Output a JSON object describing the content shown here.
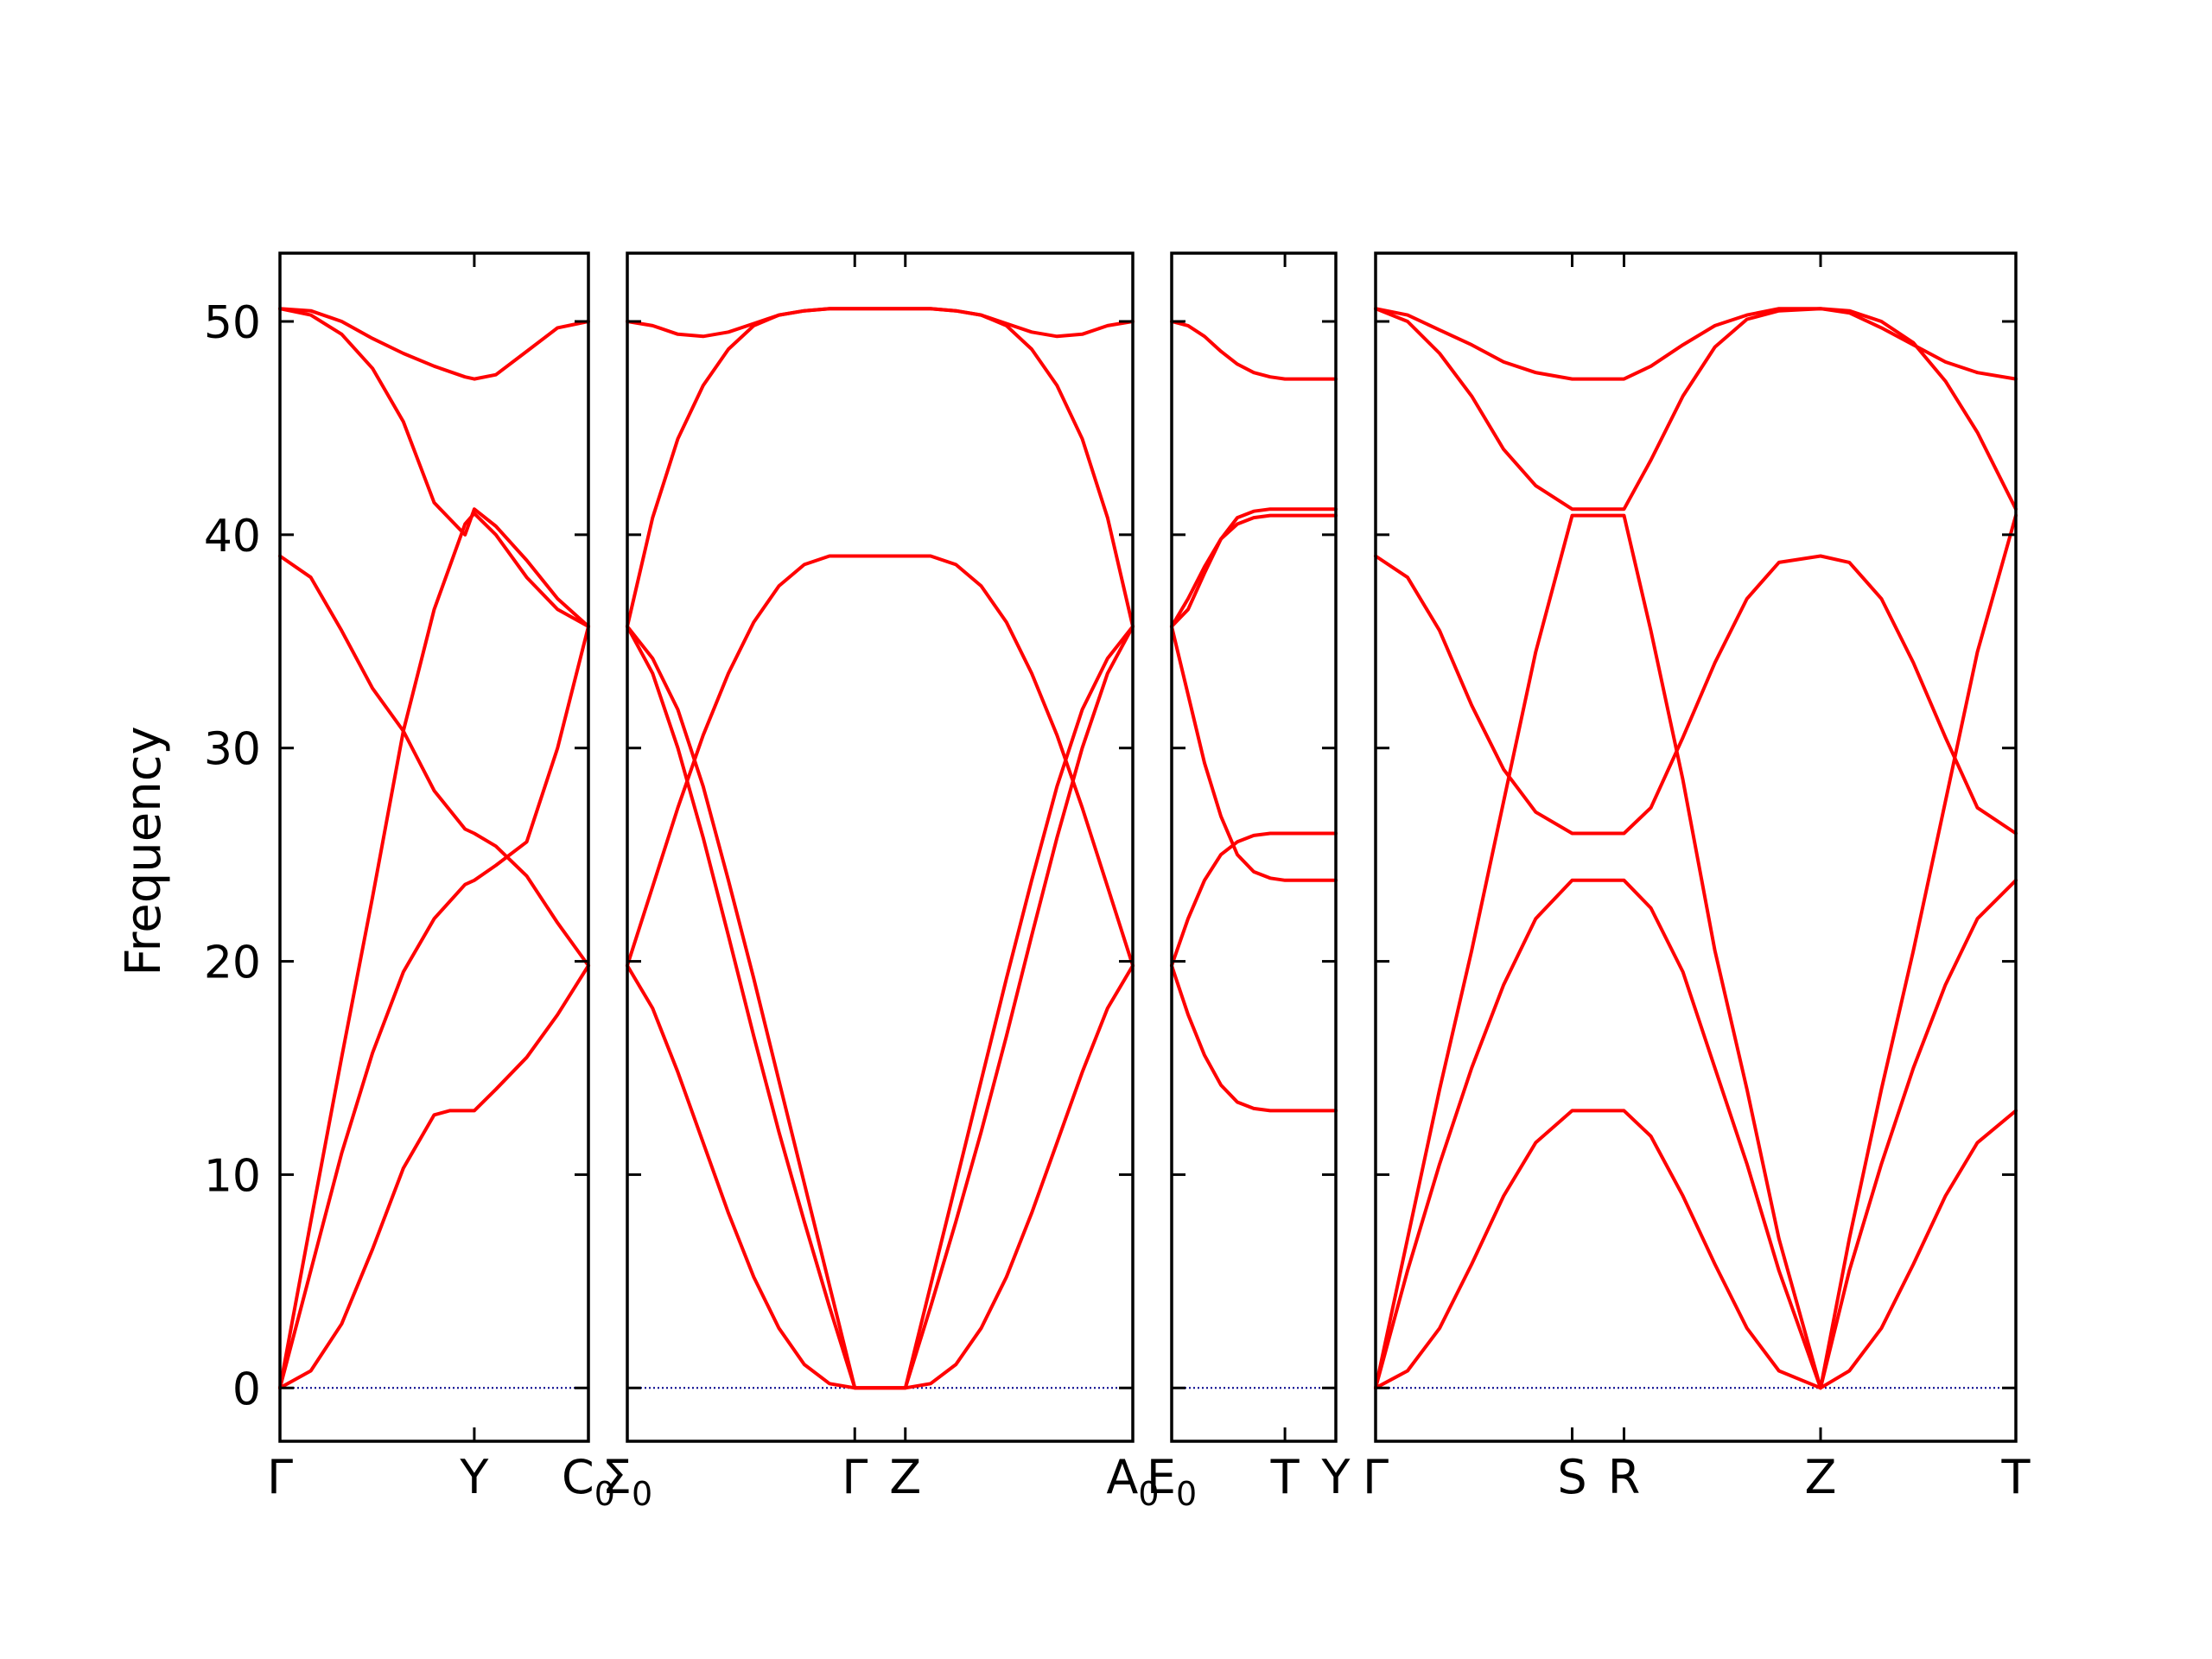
{
  "chart_data": {
    "type": "line",
    "ylabel": "Frequency",
    "ylim": [
      -2.5,
      53.2
    ],
    "yticks": [
      0,
      10,
      20,
      30,
      40,
      50
    ],
    "colors": {
      "band": "#ff0000",
      "zero_line": "#00008b",
      "frame": "#000000"
    },
    "panels": [
      {
        "xlim": [
          0,
          1
        ],
        "ticks": [
          {
            "pos": 0,
            "label": "Γ"
          },
          {
            "pos": 0.63,
            "label": "Y"
          },
          {
            "pos": 1,
            "label": "C",
            "sub": "0"
          }
        ],
        "series": [
          {
            "x": [
              0,
              0.1,
              0.2,
              0.3,
              0.4,
              0.5,
              0.55,
              0.63,
              0.7,
              0.8,
              0.9,
              1.0
            ],
            "y": [
              0,
              0.8,
              3.0,
              6.5,
              10.3,
              12.8,
              13.0,
              13.0,
              14.0,
              15.5,
              17.5,
              19.8
            ]
          },
          {
            "x": [
              0,
              0.1,
              0.2,
              0.3,
              0.4,
              0.5,
              0.6,
              0.63,
              0.7,
              0.8,
              0.9,
              1.0
            ],
            "y": [
              0,
              5.5,
              11.0,
              15.7,
              19.5,
              22.0,
              23.6,
              23.8,
              24.5,
              25.6,
              30.0,
              35.7
            ]
          },
          {
            "x": [
              0,
              0.1,
              0.2,
              0.3,
              0.4,
              0.5,
              0.6,
              0.63,
              0.7,
              0.8,
              0.9,
              1.0
            ],
            "y": [
              0,
              7.8,
              15.5,
              23.0,
              30.8,
              36.5,
              40.5,
              41.0,
              40.0,
              38.0,
              36.5,
              35.7
            ]
          },
          {
            "x": [
              0,
              0.1,
              0.2,
              0.3,
              0.4,
              0.5,
              0.6,
              0.63,
              0.7,
              0.8,
              0.9,
              1.0
            ],
            "y": [
              39.0,
              38.0,
              35.5,
              32.8,
              30.8,
              28.0,
              26.2,
              26.0,
              25.4,
              24.0,
              21.8,
              19.8
            ]
          },
          {
            "x": [
              0,
              0.1,
              0.2,
              0.3,
              0.4,
              0.5,
              0.6,
              0.63,
              0.7,
              0.8,
              0.9,
              1.0
            ],
            "y": [
              50.6,
              50.3,
              49.4,
              47.8,
              45.3,
              41.5,
              40.0,
              41.2,
              40.4,
              38.8,
              37.0,
              35.7
            ]
          },
          {
            "x": [
              0,
              0.1,
              0.2,
              0.3,
              0.4,
              0.5,
              0.6,
              0.63,
              0.7,
              0.8,
              0.9,
              1.0
            ],
            "y": [
              50.6,
              50.5,
              50.0,
              49.2,
              48.5,
              47.9,
              47.4,
              47.3,
              47.5,
              48.6,
              49.7,
              50.0
            ]
          }
        ],
        "zero_line": true
      },
      {
        "xlim": [
          0,
          1
        ],
        "ticks": [
          {
            "pos": 0,
            "label": "Σ",
            "sub": "0"
          },
          {
            "pos": 0.45,
            "label": "Γ"
          },
          {
            "pos": 0.55,
            "label": "Z"
          },
          {
            "pos": 1,
            "label": "A",
            "sub": "0"
          }
        ],
        "series": [
          {
            "x": [
              0,
              0.05,
              0.1,
              0.15,
              0.2,
              0.25,
              0.3,
              0.35,
              0.4,
              0.45,
              0.55,
              0.6,
              0.65,
              0.7,
              0.75,
              0.8,
              0.85,
              0.9,
              0.95,
              1.0
            ],
            "y": [
              19.8,
              17.8,
              14.8,
              11.5,
              8.2,
              5.2,
              2.8,
              1.1,
              0.2,
              0,
              0,
              0.2,
              1.1,
              2.8,
              5.2,
              8.2,
              11.5,
              14.8,
              17.8,
              19.8
            ]
          },
          {
            "x": [
              0,
              0.05,
              0.1,
              0.15,
              0.2,
              0.25,
              0.3,
              0.35,
              0.4,
              0.45,
              0.55,
              0.6,
              0.65,
              0.7,
              0.75,
              0.8,
              0.85,
              0.9,
              0.95,
              1.0
            ],
            "y": [
              19.8,
              23.5,
              27.2,
              30.6,
              33.5,
              35.9,
              37.6,
              38.6,
              39.0,
              39.0,
              39.0,
              39.0,
              38.6,
              37.6,
              35.9,
              33.5,
              30.6,
              27.2,
              23.5,
              19.8
            ]
          },
          {
            "x": [
              0,
              0.05,
              0.1,
              0.15,
              0.2,
              0.25,
              0.3,
              0.35,
              0.4,
              0.45,
              0.55,
              0.6,
              0.65,
              0.7,
              0.75,
              0.8,
              0.85,
              0.9,
              0.95,
              1.0
            ],
            "y": [
              35.7,
              40.8,
              44.5,
              47.0,
              48.7,
              49.8,
              50.3,
              50.5,
              50.6,
              50.6,
              50.6,
              50.6,
              50.5,
              50.3,
              49.8,
              48.7,
              47.0,
              44.5,
              40.8,
              35.7
            ]
          },
          {
            "x": [
              0,
              0.05,
              0.1,
              0.15,
              0.2,
              0.25,
              0.3,
              0.35,
              0.4,
              0.45,
              0.55,
              0.6,
              0.65,
              0.7,
              0.75,
              0.8,
              0.85,
              0.9,
              0.95,
              1.0
            ],
            "y": [
              50.0,
              49.8,
              49.4,
              49.3,
              49.5,
              49.9,
              50.3,
              50.5,
              50.6,
              50.6,
              50.6,
              50.6,
              50.5,
              50.3,
              49.9,
              49.5,
              49.3,
              49.4,
              49.8,
              50.0
            ]
          },
          {
            "x": [
              0,
              0.05,
              0.1,
              0.15,
              0.2,
              0.25,
              0.3,
              0.35,
              0.4,
              0.45,
              0.55,
              0.6,
              0.65,
              0.7,
              0.75,
              0.8,
              0.85,
              0.9,
              0.95,
              1.0
            ],
            "y": [
              35.7,
              33.5,
              30.0,
              25.8,
              21.2,
              16.5,
              12.0,
              7.8,
              3.8,
              0,
              0,
              3.8,
              7.8,
              12.0,
              16.5,
              21.2,
              25.8,
              30.0,
              33.5,
              35.7
            ]
          },
          {
            "x": [
              0,
              0.05,
              0.1,
              0.15,
              0.2,
              0.25,
              0.3,
              0.35,
              0.4,
              0.45,
              0.55,
              0.6,
              0.65,
              0.7,
              0.75,
              0.8,
              0.85,
              0.9,
              0.95,
              1.0
            ],
            "y": [
              35.7,
              34.2,
              31.8,
              28.2,
              23.8,
              19.2,
              14.4,
              9.6,
              4.8,
              0,
              0,
              4.8,
              9.6,
              14.4,
              19.2,
              23.8,
              28.2,
              31.8,
              34.2,
              35.7
            ]
          }
        ],
        "zero_line": true
      },
      {
        "xlim": [
          0,
          1
        ],
        "ticks": [
          {
            "pos": 0,
            "label": "E",
            "sub": "0"
          },
          {
            "pos": 0.69,
            "label": "T"
          },
          {
            "pos": 1,
            "label": "Y"
          }
        ],
        "series": [
          {
            "x": [
              0,
              0.1,
              0.2,
              0.3,
              0.4,
              0.5,
              0.6,
              0.69,
              0.8,
              1.0
            ],
            "y": [
              19.8,
              17.5,
              15.6,
              14.2,
              13.4,
              13.1,
              13.0,
              13.0,
              13.0,
              13.0
            ]
          },
          {
            "x": [
              0,
              0.1,
              0.2,
              0.3,
              0.4,
              0.5,
              0.6,
              0.69,
              0.8,
              1.0
            ],
            "y": [
              19.8,
              22.0,
              23.8,
              25.0,
              25.6,
              25.9,
              26.0,
              26.0,
              26.0,
              26.0
            ]
          },
          {
            "x": [
              0,
              0.1,
              0.2,
              0.3,
              0.4,
              0.5,
              0.6,
              0.69,
              0.8,
              1.0
            ],
            "y": [
              35.7,
              32.5,
              29.3,
              26.8,
              25.0,
              24.2,
              23.9,
              23.8,
              23.8,
              23.8
            ]
          },
          {
            "x": [
              0,
              0.1,
              0.2,
              0.3,
              0.4,
              0.5,
              0.6,
              0.69,
              0.8,
              1.0
            ],
            "y": [
              35.7,
              37.0,
              38.5,
              39.8,
              40.5,
              40.8,
              40.9,
              40.9,
              40.9,
              40.9
            ]
          },
          {
            "x": [
              0,
              0.1,
              0.2,
              0.3,
              0.4,
              0.5,
              0.6,
              0.69,
              0.8,
              1.0
            ],
            "y": [
              35.7,
              36.5,
              38.2,
              39.8,
              40.8,
              41.1,
              41.2,
              41.2,
              41.2,
              41.2
            ]
          },
          {
            "x": [
              0,
              0.1,
              0.2,
              0.3,
              0.4,
              0.5,
              0.6,
              0.69,
              0.8,
              1.0
            ],
            "y": [
              50.0,
              49.8,
              49.3,
              48.6,
              48.0,
              47.6,
              47.4,
              47.3,
              47.3,
              47.3
            ]
          }
        ],
        "zero_line": true
      },
      {
        "xlim": [
          0,
          1
        ],
        "ticks": [
          {
            "pos": 0,
            "label": "Γ"
          },
          {
            "pos": 0.307,
            "label": "S"
          },
          {
            "pos": 0.388,
            "label": "R"
          },
          {
            "pos": 0.695,
            "label": "Z"
          },
          {
            "pos": 1,
            "label": "T"
          }
        ],
        "series": [
          {
            "x": [
              0,
              0.05,
              0.1,
              0.15,
              0.2,
              0.25,
              0.307,
              0.388,
              0.43,
              0.48,
              0.53,
              0.58,
              0.63,
              0.695,
              0.74,
              0.79,
              0.84,
              0.89,
              0.94,
              1.0
            ],
            "y": [
              0,
              0.8,
              2.8,
              5.8,
              9.0,
              11.5,
              13.0,
              13.0,
              11.8,
              9.0,
              5.8,
              2.8,
              0.8,
              0,
              0.8,
              2.8,
              5.8,
              9.0,
              11.5,
              13.0
            ]
          },
          {
            "x": [
              0,
              0.05,
              0.1,
              0.15,
              0.2,
              0.25,
              0.307,
              0.388,
              0.43,
              0.48,
              0.53,
              0.58,
              0.63,
              0.695,
              0.74,
              0.79,
              0.84,
              0.89,
              0.94,
              1.0
            ],
            "y": [
              0,
              5.5,
              10.5,
              15.0,
              18.9,
              22.0,
              23.8,
              23.8,
              22.5,
              19.5,
              15.0,
              10.5,
              5.5,
              0,
              5.5,
              10.5,
              15.0,
              18.9,
              22.0,
              23.8
            ]
          },
          {
            "x": [
              0,
              0.05,
              0.1,
              0.15,
              0.2,
              0.25,
              0.307,
              0.388,
              0.43,
              0.48,
              0.53,
              0.58,
              0.63,
              0.695,
              0.74,
              0.79,
              0.84,
              0.89,
              0.94,
              1.0
            ],
            "y": [
              0,
              7.0,
              14.0,
              20.5,
              27.5,
              34.5,
              40.9,
              40.9,
              35.5,
              28.5,
              20.5,
              14.0,
              7.0,
              0,
              7.0,
              14.0,
              20.5,
              27.5,
              34.5,
              40.9
            ]
          },
          {
            "x": [
              0,
              0.05,
              0.1,
              0.15,
              0.2,
              0.25,
              0.307,
              0.388,
              0.43,
              0.48,
              0.53,
              0.58,
              0.63,
              0.695,
              0.74,
              0.79,
              0.84,
              0.89,
              0.94,
              1.0
            ],
            "y": [
              39.0,
              38.0,
              35.5,
              32.0,
              29.0,
              27.0,
              26.0,
              26.0,
              27.2,
              30.5,
              34.0,
              37.0,
              38.7,
              39.0,
              38.7,
              37.0,
              34.0,
              30.5,
              27.2,
              26.0
            ]
          },
          {
            "x": [
              0,
              0.05,
              0.1,
              0.15,
              0.2,
              0.25,
              0.307,
              0.388,
              0.43,
              0.48,
              0.53,
              0.58,
              0.63,
              0.695,
              0.74,
              0.79,
              0.84,
              0.89,
              0.94,
              1.0
            ],
            "y": [
              50.6,
              50.0,
              48.5,
              46.5,
              44.0,
              42.3,
              41.2,
              41.2,
              43.5,
              46.5,
              48.8,
              50.1,
              50.5,
              50.6,
              50.5,
              50.0,
              49.0,
              47.2,
              44.8,
              41.2
            ]
          },
          {
            "x": [
              0,
              0.05,
              0.1,
              0.15,
              0.2,
              0.25,
              0.307,
              0.388,
              0.43,
              0.48,
              0.53,
              0.58,
              0.63,
              0.695,
              0.74,
              0.79,
              0.84,
              0.89,
              0.94,
              1.0
            ],
            "y": [
              50.6,
              50.3,
              49.6,
              48.9,
              48.1,
              47.6,
              47.3,
              47.3,
              47.9,
              48.9,
              49.8,
              50.3,
              50.6,
              50.6,
              50.4,
              49.7,
              48.9,
              48.1,
              47.6,
              47.3
            ]
          }
        ],
        "zero_line": true
      }
    ]
  }
}
